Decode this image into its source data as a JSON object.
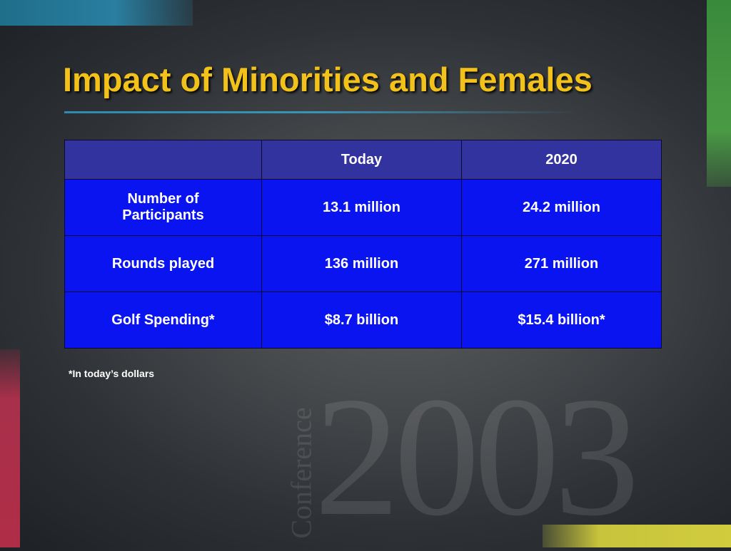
{
  "slide": {
    "title": "Impact of Minorities and Females",
    "footnote": "*In today’s dollars"
  },
  "table": {
    "headers": [
      "",
      "Today",
      "2020"
    ],
    "rows": [
      [
        "Number of Participants",
        "13.1 million",
        "24.2 million"
      ],
      [
        "Rounds played",
        "136 million",
        "271 million"
      ],
      [
        "Golf Spending*",
        "$8.7 billion",
        "$15.4 billion*"
      ]
    ]
  },
  "watermark": {
    "year": "2003",
    "word": "Conference"
  },
  "colors": {
    "title": "#f2c21a",
    "header_bg": "#3333a0",
    "row_bg": "#0a14f0",
    "accent_teal": "#2a7ea0",
    "accent_green": "#4a9a44",
    "accent_red": "#b02d48",
    "accent_yellow": "#d1cc3e"
  }
}
